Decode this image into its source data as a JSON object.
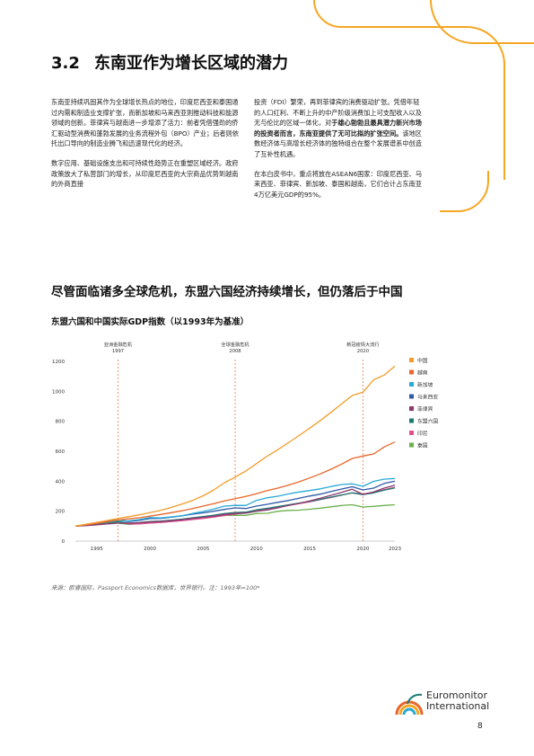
{
  "section": {
    "number": "3.2",
    "title": "东南亚作为增长区域的潜力"
  },
  "body": {
    "left_p1": "东南亚持续巩固其作为全球增长热点的地位，印度尼西亚和泰国通过内需和制造业支撑扩张，而新加坡和马来西亚则推动科技和能源领域的创新。菲律宾与越南进一步增添了活力：前者凭借强劲的侨汇驱动型消费和蓬勃发展的业务流程外包（BPO）产业；后者则依托出口导向的制造业腾飞和迅速现代化的经济。",
    "left_p2": "数字应用、基础设施支出和可持续性趋势正在重塑区域经济。政府政策放大了私营部门的增长，从印度尼西亚的大宗商品优势到越南的外商直接",
    "right_p1_plain": "投资（FDI）繁荣，再到菲律宾的消费驱动扩张。凭借年轻的人口红利、不断上升的中产阶级消费加上可支配收入以及无与伦比的区域一体化，对",
    "right_p1_bold": "于雄心勃勃且最具潜力新兴市场的投资者而言，东南亚提供了无可比拟的扩张空间。",
    "right_p1_tail": "该地区数经济体与高增长经济体的独特组合在整个发展谱系中创造了互补性机遇。",
    "right_p2": "在本白皮书中，重点将放在ASEAN6国家：印度尼西亚、马来西亚、菲律宾、新加坡、泰国和越南，它们合计占东南亚4万亿美元GDP的95%。"
  },
  "chart_heading": "尽管面临诸多全球危机，东盟六国经济持续增长，但仍落后于中国",
  "chart_title": "东盟六国和中国实际GDP指数（以1993年为基准）",
  "source_note": "来源：欧睿国际，Passport Economics数据库，世界银行。注：1993年=100*",
  "logo": {
    "line1": "Euromonitor",
    "line2": "International"
  },
  "page_number": "8",
  "colors": {
    "accent_orange": "#f5a623",
    "china": "#f39c2a",
    "vietnam": "#e8662a",
    "singapore": "#29a9d6",
    "malaysia": "#2f5aa8",
    "philippines": "#8a3a6e",
    "asean6": "#1a7a72",
    "indonesia": "#e0508f",
    "thailand": "#6ab04c"
  },
  "chart_data": {
    "type": "line",
    "title": "东盟六国和中国实际GDP指数（以1993年为基准）",
    "xlabel": "",
    "ylabel": "",
    "xlim": [
      1993,
      2023
    ],
    "ylim": [
      0,
      1200
    ],
    "yticks": [
      0,
      200,
      400,
      600,
      800,
      1000,
      1200
    ],
    "xticks": [
      1995,
      2000,
      2005,
      2010,
      2015,
      2020,
      2023
    ],
    "grid": false,
    "legend_position": "right",
    "annotations": [
      {
        "label_line1": "亚洲金融危机",
        "label_line2": "1997",
        "x": 1997
      },
      {
        "label_line1": "全球金融危机",
        "label_line2": "2008",
        "x": 2008
      },
      {
        "label_line1": "新冠疫情大流行",
        "label_line2": "2020",
        "x": 2020
      }
    ],
    "x": [
      1993,
      1994,
      1995,
      1996,
      1997,
      1998,
      1999,
      2000,
      2001,
      2002,
      2003,
      2004,
      2005,
      2006,
      2007,
      2008,
      2009,
      2010,
      2011,
      2012,
      2013,
      2014,
      2015,
      2016,
      2017,
      2018,
      2019,
      2020,
      2021,
      2022,
      2023
    ],
    "series": [
      {
        "name": "中国",
        "color": "#f39c2a",
        "values": [
          100,
          113,
          125,
          138,
          151,
          163,
          176,
          190,
          206,
          225,
          248,
          272,
          303,
          342,
          390,
          428,
          468,
          517,
          567,
          610,
          657,
          705,
          754,
          805,
          860,
          917,
          972,
          994,
          1077,
          1109,
          1169
        ]
      },
      {
        "name": "越南",
        "color": "#e8662a",
        "values": [
          100,
          109,
          119,
          130,
          141,
          149,
          156,
          167,
          178,
          190,
          203,
          218,
          234,
          250,
          268,
          283,
          298,
          317,
          337,
          354,
          374,
          396,
          422,
          449,
          480,
          514,
          552,
          568,
          582,
          629,
          662
        ]
      },
      {
        "name": "新加坡",
        "color": "#29a9d6",
        "values": [
          100,
          111,
          119,
          128,
          138,
          135,
          144,
          157,
          155,
          162,
          169,
          185,
          198,
          215,
          234,
          239,
          238,
          272,
          289,
          300,
          315,
          328,
          338,
          349,
          365,
          378,
          383,
          366,
          399,
          414,
          418
        ]
      },
      {
        "name": "马来西亚",
        "color": "#2f5aa8",
        "values": [
          100,
          109,
          120,
          132,
          141,
          131,
          139,
          151,
          152,
          160,
          169,
          180,
          189,
          200,
          212,
          222,
          218,
          234,
          246,
          259,
          271,
          287,
          301,
          314,
          332,
          348,
          363,
          342,
          354,
          385,
          400
        ]
      },
      {
        "name": "菲律宾",
        "color": "#8a3a6e",
        "values": [
          100,
          104,
          109,
          115,
          120,
          120,
          123,
          128,
          131,
          136,
          143,
          152,
          159,
          167,
          178,
          185,
          187,
          200,
          208,
          222,
          238,
          252,
          268,
          287,
          306,
          326,
          346,
          312,
          329,
          354,
          373
        ]
      },
      {
        "name": "东盟六国",
        "color": "#1a7a72",
        "values": [
          100,
          108,
          116,
          124,
          130,
          120,
          124,
          131,
          134,
          140,
          147,
          156,
          164,
          173,
          184,
          191,
          194,
          209,
          219,
          231,
          242,
          254,
          266,
          279,
          294,
          308,
          322,
          311,
          322,
          340,
          356
        ]
      },
      {
        "name": "印尼",
        "color": "#e0508f",
        "values": [
          100,
          107,
          116,
          125,
          131,
          114,
          115,
          121,
          125,
          131,
          137,
          144,
          152,
          161,
          171,
          181,
          189,
          201,
          213,
          226,
          239,
          251,
          263,
          277,
          291,
          307,
          322,
          315,
          326,
          343,
          360
        ]
      },
      {
        "name": "泰国",
        "color": "#6ab04c",
        "values": [
          100,
          109,
          118,
          124,
          121,
          112,
          117,
          122,
          125,
          132,
          141,
          149,
          155,
          163,
          171,
          173,
          172,
          185,
          186,
          199,
          205,
          207,
          213,
          220,
          229,
          238,
          243,
          228,
          232,
          238,
          243
        ]
      }
    ]
  }
}
